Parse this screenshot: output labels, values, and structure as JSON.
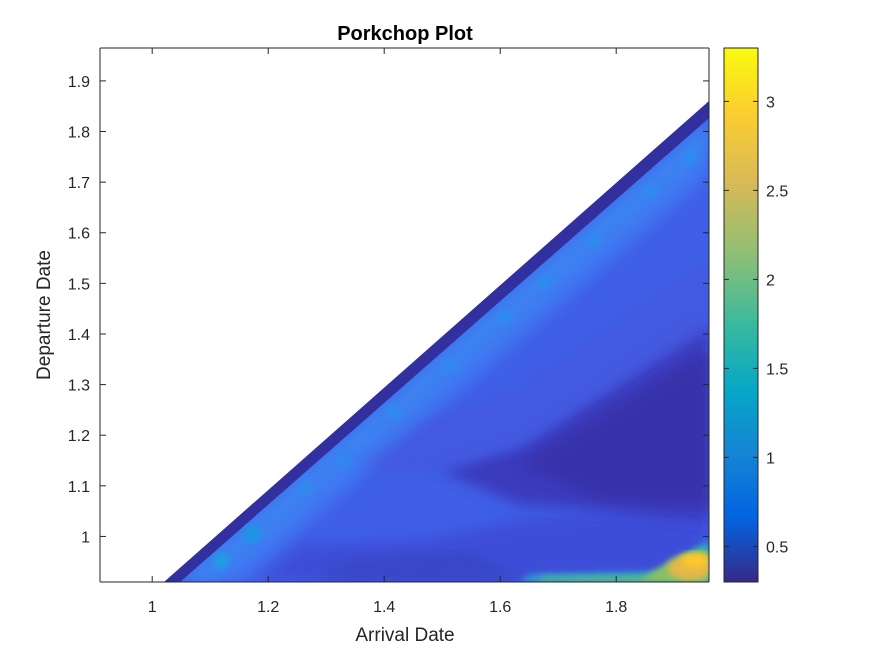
{
  "chart_data": {
    "type": "heatmap",
    "title": "Porkchop Plot",
    "xlabel": "Arrival Date",
    "ylabel": "Departure Date",
    "xlim": [
      0.91,
      1.96
    ],
    "ylim": [
      0.91,
      1.965
    ],
    "x_ticks": [
      1,
      1.2,
      1.4,
      1.6,
      1.8
    ],
    "x_tick_labels": [
      "1",
      "1.2",
      "1.4",
      "1.6",
      "1.8"
    ],
    "y_ticks": [
      1,
      1.1,
      1.2,
      1.3,
      1.4,
      1.5,
      1.6,
      1.7,
      1.8,
      1.9
    ],
    "y_tick_labels": [
      "1",
      "1.1",
      "1.2",
      "1.3",
      "1.4",
      "1.5",
      "1.6",
      "1.7",
      "1.8",
      "1.9"
    ],
    "colorbar": {
      "limits": [
        0.3,
        3.3
      ],
      "ticks": [
        0.5,
        1,
        1.5,
        2,
        2.5,
        3
      ],
      "tick_labels": [
        "0.5",
        "1",
        "1.5",
        "2",
        "2.5",
        "3"
      ],
      "colormap": "parula"
    },
    "valid_region": "departure date below arrival date (Departure ≈ Arrival − 0.11)",
    "value_features": [
      {
        "x": 1.94,
        "y": 0.95,
        "value": 3.1
      },
      {
        "x": 1.9,
        "y": 0.94,
        "value": 2.6
      },
      {
        "x": 1.75,
        "y": 0.925,
        "value": 2.3
      },
      {
        "x": 1.6,
        "y": 1.3,
        "value": 0.45
      }
    ]
  }
}
